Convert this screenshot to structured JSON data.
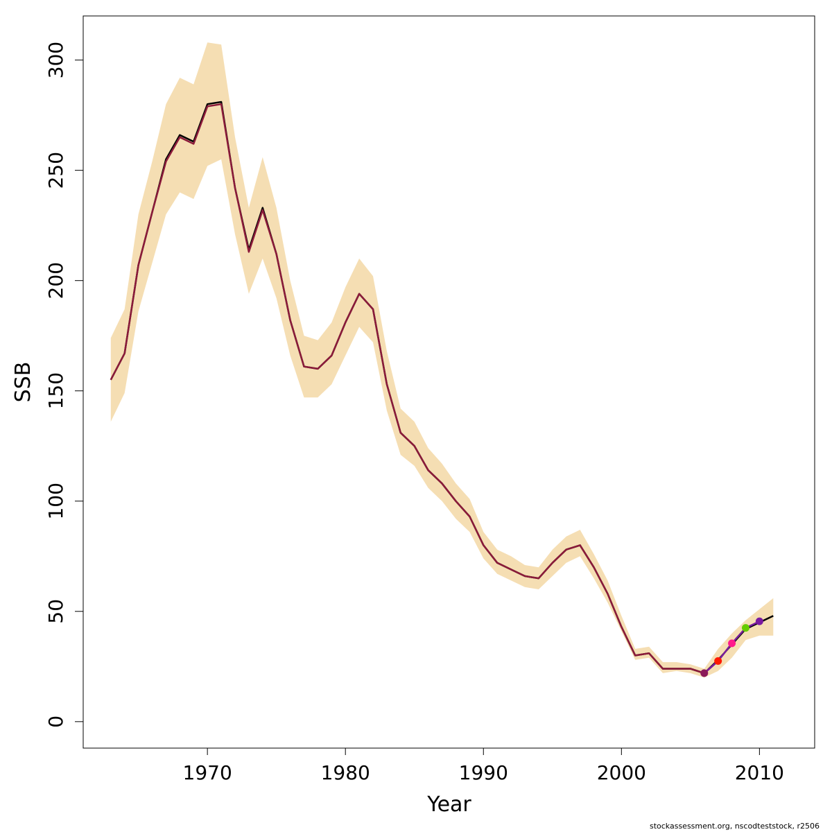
{
  "chart_data": {
    "type": "line",
    "xlabel": "Year",
    "ylabel": "SSB",
    "xlim": [
      1961,
      2014
    ],
    "ylim": [
      -12,
      320
    ],
    "x_ticks": [
      1970,
      1980,
      1990,
      2000,
      2010
    ],
    "y_ticks": [
      0,
      50,
      100,
      150,
      200,
      250,
      300
    ],
    "grid": false,
    "legend": "none",
    "colors": {
      "band": "#f5deb3",
      "retro_line": "#000000",
      "main_line": "#8b1a3a"
    },
    "years": [
      1963,
      1964,
      1965,
      1966,
      1967,
      1968,
      1969,
      1970,
      1971,
      1972,
      1973,
      1974,
      1975,
      1976,
      1977,
      1978,
      1979,
      1980,
      1981,
      1982,
      1983,
      1984,
      1985,
      1986,
      1987,
      1988,
      1989,
      1990,
      1991,
      1992,
      1993,
      1994,
      1995,
      1996,
      1997,
      1998,
      1999,
      2000,
      2001,
      2002,
      2003,
      2004,
      2005,
      2006,
      2007,
      2008,
      2009,
      2010,
      2011
    ],
    "band_lower": [
      136,
      149,
      186,
      208,
      230,
      240,
      237,
      252,
      255,
      221,
      194,
      210,
      192,
      166,
      147,
      147,
      153,
      166,
      179,
      172,
      141,
      121,
      116,
      106,
      100,
      92,
      86,
      74,
      67,
      64,
      61,
      60,
      66,
      72,
      75,
      65,
      54,
      41,
      28,
      29,
      22,
      23,
      22,
      20,
      23,
      29,
      37,
      39,
      39
    ],
    "band_upper": [
      174,
      187,
      230,
      254,
      280,
      292,
      289,
      308,
      307,
      265,
      233,
      256,
      233,
      200,
      175,
      173,
      181,
      197,
      210,
      202,
      168,
      142,
      136,
      124,
      117,
      108,
      101,
      86,
      78,
      75,
      71,
      70,
      78,
      84,
      87,
      76,
      64,
      48,
      33,
      34,
      27,
      27,
      26,
      24,
      33,
      40,
      46,
      51,
      56
    ],
    "series": [
      {
        "x": [
          1963,
          1964,
          1965,
          1966,
          1967,
          1968,
          1969,
          1970,
          1971,
          1972,
          1973,
          1974,
          1975,
          1976,
          1977,
          1978,
          1979,
          1980,
          1981,
          1982,
          1983,
          1984,
          1985,
          1986,
          1987,
          1988,
          1989,
          1990,
          1991,
          1992,
          1993,
          1994,
          1995,
          1996,
          1997,
          1998,
          1999,
          2000,
          2001,
          2002,
          2003,
          2004,
          2005,
          2006,
          2007,
          2008,
          2009,
          2010,
          2011
        ],
        "values": [
          155,
          167,
          207,
          231,
          255,
          266,
          263,
          280,
          281,
          242,
          214,
          233,
          212,
          182,
          161,
          160,
          166,
          181,
          194,
          187,
          153,
          131,
          125,
          114,
          108,
          100,
          93,
          80,
          72,
          69,
          66,
          65,
          72,
          78,
          80,
          70,
          58,
          43,
          30,
          31,
          24,
          24,
          24,
          22,
          28,
          35,
          42,
          45,
          48
        ]
      },
      {
        "x": [
          1963,
          1964,
          1965,
          1966,
          1967,
          1968,
          1969,
          1970,
          1971,
          1972,
          1973,
          1974,
          1975,
          1976,
          1977,
          1978,
          1979,
          1980,
          1981,
          1982,
          1983,
          1984,
          1985,
          1986,
          1987,
          1988,
          1989,
          1990,
          1991,
          1992,
          1993,
          1994,
          1995,
          1996,
          1997,
          1998,
          1999,
          2000,
          2001,
          2002,
          2003,
          2004,
          2005,
          2006
        ],
        "values": [
          155,
          167,
          207,
          231,
          254,
          265,
          262,
          279,
          280,
          242,
          213,
          232,
          212,
          182,
          161,
          160,
          166,
          181,
          194,
          187,
          153,
          131,
          125,
          114,
          108,
          100,
          93,
          80,
          72,
          69,
          66,
          65,
          72,
          78,
          80,
          70,
          58,
          43,
          30,
          31,
          24,
          24,
          24,
          22
        ]
      },
      {
        "x": [
          2006,
          2007
        ],
        "values": [
          22,
          27.5
        ]
      },
      {
        "x": [
          2006,
          2007,
          2008
        ],
        "values": [
          22,
          27.5,
          35.5
        ]
      },
      {
        "x": [
          2006,
          2007,
          2008,
          2009
        ],
        "values": [
          22,
          27.5,
          35.5,
          42.5
        ]
      },
      {
        "x": [
          2006,
          2007,
          2008,
          2009,
          2010
        ],
        "values": [
          22,
          27.5,
          35.5,
          42.5,
          45.5
        ]
      }
    ],
    "end_points": [
      {
        "x": 2006,
        "y": 22,
        "color": "#8b1a5a"
      },
      {
        "x": 2007,
        "y": 27.5,
        "color": "#ff1a00"
      },
      {
        "x": 2008,
        "y": 35.5,
        "color": "#ff1a8c"
      },
      {
        "x": 2009,
        "y": 42.5,
        "color": "#66cc00"
      },
      {
        "x": 2010,
        "y": 45.5,
        "color": "#7a1aa0"
      }
    ],
    "line_colors": [
      "#000000",
      "#8b1a3a",
      "#ff1a00",
      "#ff1a8c",
      "#66cc00",
      "#7a1aa0"
    ]
  },
  "footer": "stockassessment.org, nscodteststock, r2506"
}
